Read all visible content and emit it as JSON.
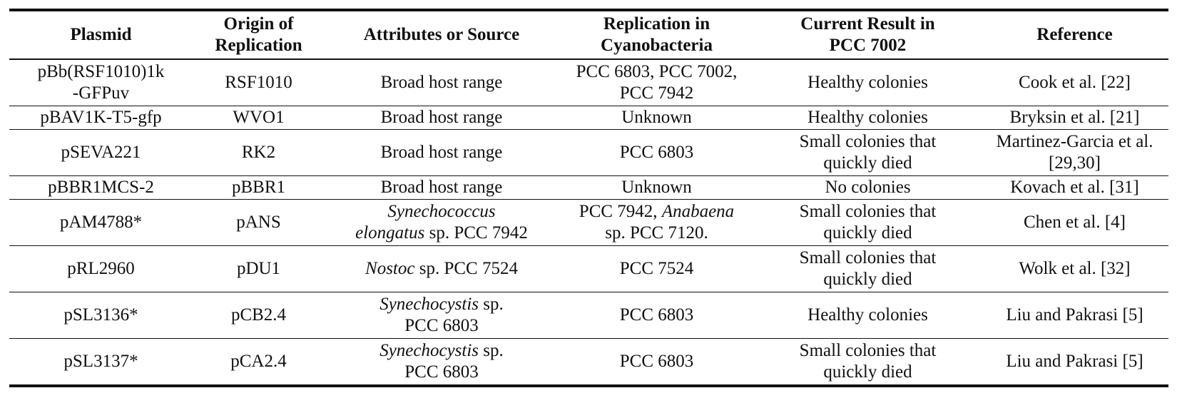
{
  "table": {
    "header": [
      [
        "Plasmid"
      ],
      [
        "Origin of",
        "Replication"
      ],
      [
        "Attributes or Source"
      ],
      [
        "Replication in",
        "Cyanobacteria"
      ],
      [
        "Current Result in",
        "PCC 7002"
      ],
      [
        "Reference"
      ]
    ],
    "rows": [
      [
        [
          "pBb(RSF1010)1k",
          "-GFPuv"
        ],
        [
          "RSF1010"
        ],
        [
          "Broad host range"
        ],
        [
          "PCC 6803, PCC 7002,",
          "PCC 7942"
        ],
        [
          "Healthy colonies"
        ],
        [
          "Cook et al. [22]"
        ]
      ],
      [
        [
          "pBAV1K-T5-gfp"
        ],
        [
          "WVO1"
        ],
        [
          "Broad host range"
        ],
        [
          "Unknown"
        ],
        [
          "Healthy colonies"
        ],
        [
          "Bryksin et al. [21]"
        ]
      ],
      [
        [
          "pSEVA221"
        ],
        [
          "RK2"
        ],
        [
          "Broad host range"
        ],
        [
          "PCC 6803"
        ],
        [
          "Small colonies that",
          "quickly died"
        ],
        [
          "Martinez-Garcia et al.",
          "[29,30]"
        ]
      ],
      [
        [
          "pBBR1MCS-2"
        ],
        [
          "pBBR1"
        ],
        [
          "Broad host range"
        ],
        [
          "Unknown"
        ],
        [
          "No colonies"
        ],
        [
          "Kovach et al. [31]"
        ]
      ],
      [
        [
          "pAM4788*"
        ],
        [
          "pANS"
        ],
        [
          [
            {
              "text": "Synechococcus",
              "italic": true
            }
          ],
          [
            {
              "text": "elongatus",
              "italic": true
            },
            {
              "text": " sp. PCC 7942",
              "italic": false
            }
          ]
        ],
        [
          [
            {
              "text": "PCC 7942, ",
              "italic": false
            },
            {
              "text": "Anabaena",
              "italic": true
            }
          ],
          "sp. PCC 7120."
        ],
        [
          "Small colonies that",
          "quickly died"
        ],
        [
          "Chen et al. [4]"
        ]
      ],
      [
        [
          "pRL2960"
        ],
        [
          "pDU1"
        ],
        [
          [
            {
              "text": "Nostoc",
              "italic": true
            },
            {
              "text": " sp. PCC 7524",
              "italic": false
            }
          ]
        ],
        [
          "PCC 7524"
        ],
        [
          "Small colonies that",
          "quickly died"
        ],
        [
          "Wolk et al. [32]"
        ]
      ],
      [
        [
          "pSL3136*"
        ],
        [
          "pCB2.4"
        ],
        [
          [
            {
              "text": "Synechocystis",
              "italic": true
            },
            {
              "text": " sp.",
              "italic": false
            }
          ],
          "PCC 6803"
        ],
        [
          "PCC 6803"
        ],
        [
          "Healthy colonies"
        ],
        [
          "Liu and Pakrasi [5]"
        ]
      ],
      [
        [
          "pSL3137*"
        ],
        [
          "pCA2.4"
        ],
        [
          [
            {
              "text": "Synechocystis",
              "italic": true
            },
            {
              "text": " sp.",
              "italic": false
            }
          ],
          "PCC 6803"
        ],
        [
          "PCC 6803"
        ],
        [
          "Small colonies that",
          "quickly died"
        ],
        [
          "Liu and Pakrasi [5]"
        ]
      ]
    ]
  }
}
